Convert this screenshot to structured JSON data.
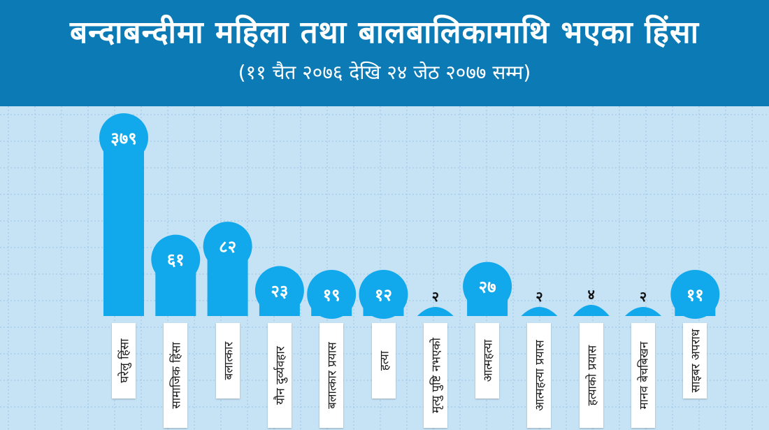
{
  "colors": {
    "header_bg": "#0b7ab5",
    "plot_bg": "#c6e3f6",
    "grid": "#9bc6e6",
    "bar": "#12a9ec",
    "value_on_bar": "#ffffff",
    "value_dark": "#111111"
  },
  "header": {
    "title": "बन्दाबन्दीमा महिला तथा बालबालिकामाथि भएका हिंसा",
    "subtitle": "(११ चैत २०७६ देखि २४ जेठ २०७७ सम्म)"
  },
  "chart_data": {
    "type": "bar",
    "title": "बन्दाबन्दीमा महिला तथा बालबालिकामाथि भएका हिंसा",
    "subtitle": "(११ चैत २०७६ देखि २४ जेठ २०७७ सम्म)",
    "grid": true,
    "categories": [
      "घरेलु हिंसा",
      "सामाजिक हिंसा",
      "बलात्कार",
      "यौन दुर्व्यवहार",
      "बलात्कार प्रयास",
      "हत्या",
      "मृत्यु पुष्टि नभएको",
      "आत्महत्या",
      "आत्महत्या प्रयास",
      "हत्याको प्रयास",
      "मानव बेचबिखन",
      "साइबर अपराध"
    ],
    "values": [
      379,
      61,
      82,
      23,
      19,
      12,
      2,
      27,
      2,
      4,
      2,
      11
    ],
    "value_labels": [
      "३७९",
      "६१",
      "८२",
      "२३",
      "१९",
      "१२",
      "२",
      "२७",
      "२",
      "४",
      "२",
      "११"
    ]
  }
}
